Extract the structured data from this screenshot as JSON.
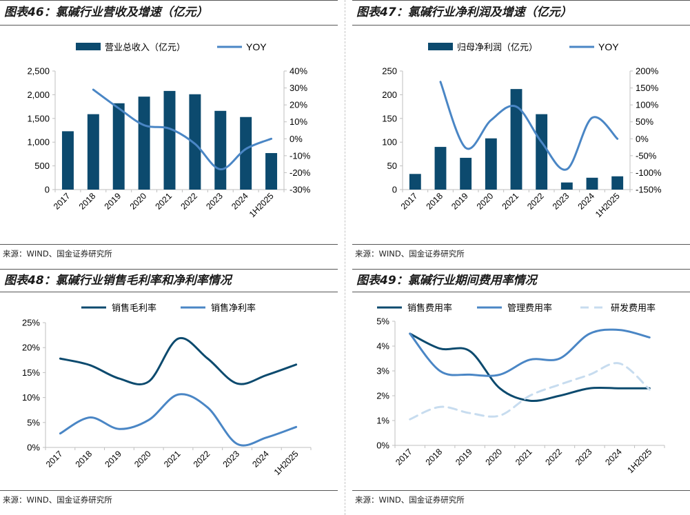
{
  "colors": {
    "bar": "#0c4a6e",
    "dark": "#0c4a6e",
    "mid": "#4a86c5",
    "light": "#c7dcef",
    "axis": "#bfbfbf"
  },
  "source_text": "来源：WIND、国金证券研究所",
  "panels": [
    {
      "title": "图表46：氯碱行业营收及增速（亿元）"
    },
    {
      "title": "图表47：氯碱行业净利润及增速（亿元）"
    },
    {
      "title": "图表48：氯碱行业销售毛利率和净利率情况"
    },
    {
      "title": "图表49：氯碱行业期间费用率情况"
    }
  ],
  "chart_data": [
    {
      "type": "bar",
      "categories": [
        "2017",
        "2018",
        "2019",
        "2020",
        "2021",
        "2022",
        "2023",
        "2024",
        "1H2025"
      ],
      "series": [
        {
          "name": "营业总收入（亿元）",
          "kind": "bar",
          "axis": "left",
          "values": [
            1230,
            1590,
            1820,
            1960,
            2080,
            2010,
            1660,
            1530,
            770
          ]
        },
        {
          "name": "YOY",
          "kind": "line",
          "axis": "right",
          "values": [
            null,
            29,
            18,
            8,
            6,
            -3,
            -18,
            -6,
            0
          ]
        }
      ],
      "ylim_left": [
        0,
        2500
      ],
      "yticks_left": [
        "0",
        "500",
        "1,000",
        "1,500",
        "2,000",
        "2,500"
      ],
      "ylim_right": [
        -30,
        40
      ],
      "yticks_right": [
        "-30%",
        "-20%",
        "-10%",
        "0%",
        "10%",
        "20%",
        "30%",
        "40%"
      ]
    },
    {
      "type": "bar",
      "categories": [
        "2017",
        "2018",
        "2019",
        "2020",
        "2021",
        "2022",
        "2023",
        "2024",
        "1H2025"
      ],
      "series": [
        {
          "name": "归母净利润（亿元）",
          "kind": "bar",
          "axis": "left",
          "values": [
            33,
            90,
            67,
            108,
            212,
            159,
            15,
            25,
            28
          ]
        },
        {
          "name": "YOY",
          "kind": "line",
          "axis": "right",
          "values": [
            null,
            168,
            -27,
            55,
            95,
            -10,
            -90,
            62,
            0
          ]
        }
      ],
      "ylim_left": [
        0,
        250
      ],
      "yticks_left": [
        "0",
        "50",
        "100",
        "150",
        "200",
        "250"
      ],
      "ylim_right": [
        -150,
        200
      ],
      "yticks_right": [
        "-150%",
        "-100%",
        "-50%",
        "0%",
        "50%",
        "100%",
        "150%",
        "200%"
      ]
    },
    {
      "type": "line",
      "categories": [
        "2017",
        "2018",
        "2019",
        "2020",
        "2021",
        "2022",
        "2023",
        "2024",
        "1H2025"
      ],
      "series": [
        {
          "name": "销售毛利率",
          "style": "dark",
          "values": [
            17.8,
            16.5,
            13.8,
            13.2,
            21.8,
            17.8,
            12.8,
            14.5,
            16.6
          ]
        },
        {
          "name": "销售净利率",
          "style": "mid",
          "values": [
            2.8,
            6.0,
            3.7,
            5.5,
            10.6,
            8.0,
            0.7,
            2.0,
            4.1
          ]
        }
      ],
      "ylim": [
        0,
        25
      ],
      "yticks": [
        "0%",
        "5%",
        "10%",
        "15%",
        "20%",
        "25%"
      ]
    },
    {
      "type": "line",
      "categories": [
        "2017",
        "2018",
        "2019",
        "2020",
        "2021",
        "2022",
        "2023",
        "2024",
        "1H2025"
      ],
      "series": [
        {
          "name": "销售费用率",
          "style": "dark",
          "values": [
            4.5,
            3.9,
            3.8,
            2.3,
            1.8,
            2.0,
            2.3,
            2.3,
            2.3
          ]
        },
        {
          "name": "管理费用率",
          "style": "mid",
          "values": [
            4.5,
            3.0,
            2.85,
            2.85,
            3.45,
            3.5,
            4.5,
            4.65,
            4.35
          ]
        },
        {
          "name": "研发费用率",
          "style": "light",
          "values": [
            1.05,
            1.55,
            1.3,
            1.2,
            2.0,
            2.45,
            2.85,
            3.3,
            2.25
          ]
        }
      ],
      "ylim": [
        0,
        5
      ],
      "yticks": [
        "0%",
        "1%",
        "2%",
        "3%",
        "4%",
        "5%"
      ]
    }
  ]
}
